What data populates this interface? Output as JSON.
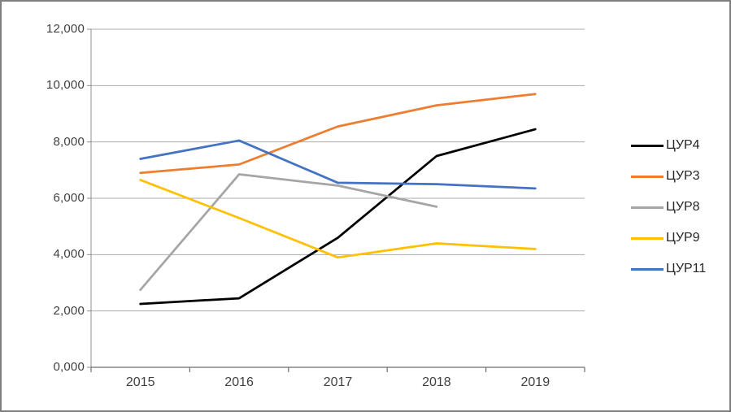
{
  "chart_data": {
    "type": "line",
    "title": "",
    "xlabel": "",
    "ylabel": "",
    "categories": [
      "2015",
      "2016",
      "2017",
      "2018",
      "2019"
    ],
    "series": [
      {
        "name": "ЦУР4",
        "color": "#000000",
        "values": [
          2250,
          2450,
          4600,
          7500,
          8450
        ]
      },
      {
        "name": "ЦУР3",
        "color": "#ED7D31",
        "values": [
          6900,
          7200,
          8550,
          9300,
          9700
        ]
      },
      {
        "name": "ЦУР8",
        "color": "#A5A5A5",
        "values": [
          2750,
          6850,
          6450,
          5700,
          null
        ]
      },
      {
        "name": "ЦУР9",
        "color": "#FFC000",
        "values": [
          6650,
          5300,
          3900,
          4400,
          4200
        ]
      },
      {
        "name": "ЦУР11",
        "color": "#4472C4",
        "values": [
          7400,
          8050,
          6550,
          6500,
          6350
        ]
      }
    ],
    "ylim": [
      0,
      12000
    ],
    "y_ticks": [
      0,
      2000,
      4000,
      6000,
      8000,
      10000,
      12000
    ],
    "y_tick_labels": [
      "0,000",
      "2,000",
      "4,000",
      "6,000",
      "8,000",
      "10,000",
      "12,000"
    ],
    "grid": true,
    "legend_position": "right"
  },
  "colors": {
    "gridline": "#ABABAB",
    "y_axis": "#8C8C8C",
    "x_axis": "#6E6E6E",
    "tick_text": "#404040",
    "legend_text": "#262626",
    "frame_border": "#7f7f7f",
    "background": "#ffffff"
  }
}
